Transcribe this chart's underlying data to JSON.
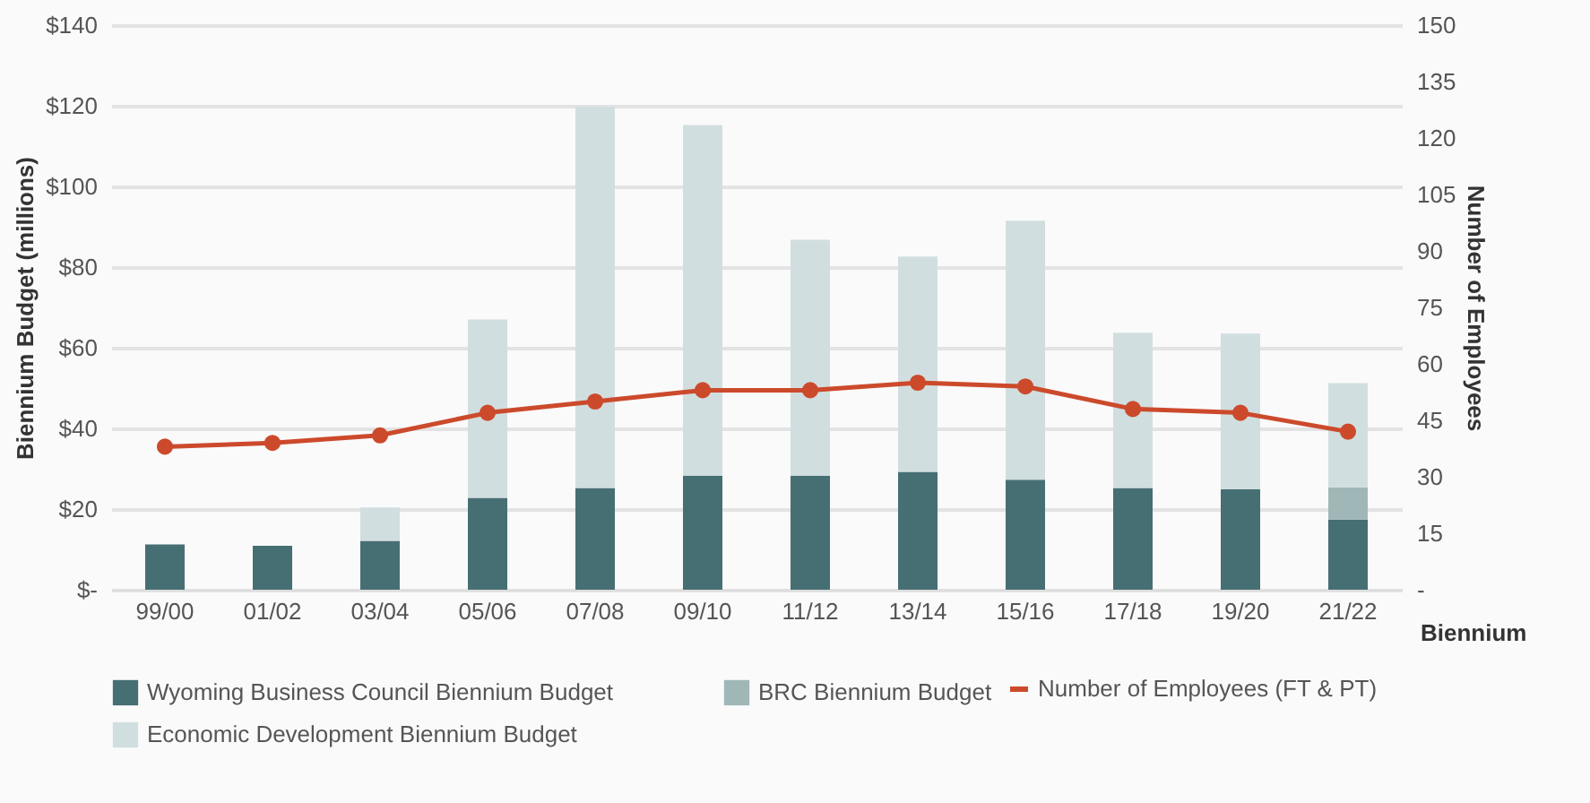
{
  "chart_data": {
    "type": "bar",
    "stacked": true,
    "xlabel": "Biennium",
    "ylabel": "Biennium Budget (millions)",
    "y2label": "Number of Employees",
    "categories": [
      "99/00",
      "01/02",
      "03/04",
      "05/06",
      "07/08",
      "09/10",
      "11/12",
      "13/14",
      "15/16",
      "17/18",
      "19/20",
      "21/22"
    ],
    "series": [
      {
        "name": "Wyoming Business Council Biennium Budget",
        "color": "#466f74",
        "values": [
          11.2,
          10.9,
          12.1,
          22.8,
          25.2,
          28.3,
          28.3,
          29.2,
          27.3,
          25.2,
          24.9,
          17.4
        ]
      },
      {
        "name": "BRC Biennium Budget",
        "color": "#a0b7b8",
        "values": [
          null,
          null,
          null,
          null,
          null,
          null,
          null,
          null,
          null,
          null,
          null,
          8.0
        ]
      },
      {
        "name": "Economic Development Biennium Budget",
        "color": "#d1dedf",
        "values": [
          null,
          null,
          8.3,
          44.2,
          94.6,
          86.9,
          58.5,
          53.4,
          64.2,
          38.5,
          38.6,
          25.8
        ]
      },
      {
        "name": "Number of Employees (FT & PT)",
        "type": "line",
        "axis": "y2",
        "color": "#cc4a2c",
        "values": [
          38,
          39,
          41,
          47,
          50,
          53,
          53,
          55,
          54,
          48,
          47,
          42
        ]
      }
    ],
    "ylim": [
      0,
      140
    ],
    "yticks": [
      {
        "value": 0,
        "label": "$-"
      },
      {
        "value": 20,
        "label": "$20"
      },
      {
        "value": 40,
        "label": "$40"
      },
      {
        "value": 60,
        "label": "$60"
      },
      {
        "value": 80,
        "label": "$80"
      },
      {
        "value": 100,
        "label": "$100"
      },
      {
        "value": 120,
        "label": "$120"
      },
      {
        "value": 140,
        "label": "$140"
      }
    ],
    "y2lim": [
      0,
      150
    ],
    "y2ticks": [
      {
        "value": 0,
        "label": "-"
      },
      15,
      30,
      45,
      60,
      75,
      90,
      105,
      120,
      135,
      150
    ],
    "grid": "y",
    "legend": "bottom",
    "marker": "circle",
    "line_style": "solid"
  }
}
